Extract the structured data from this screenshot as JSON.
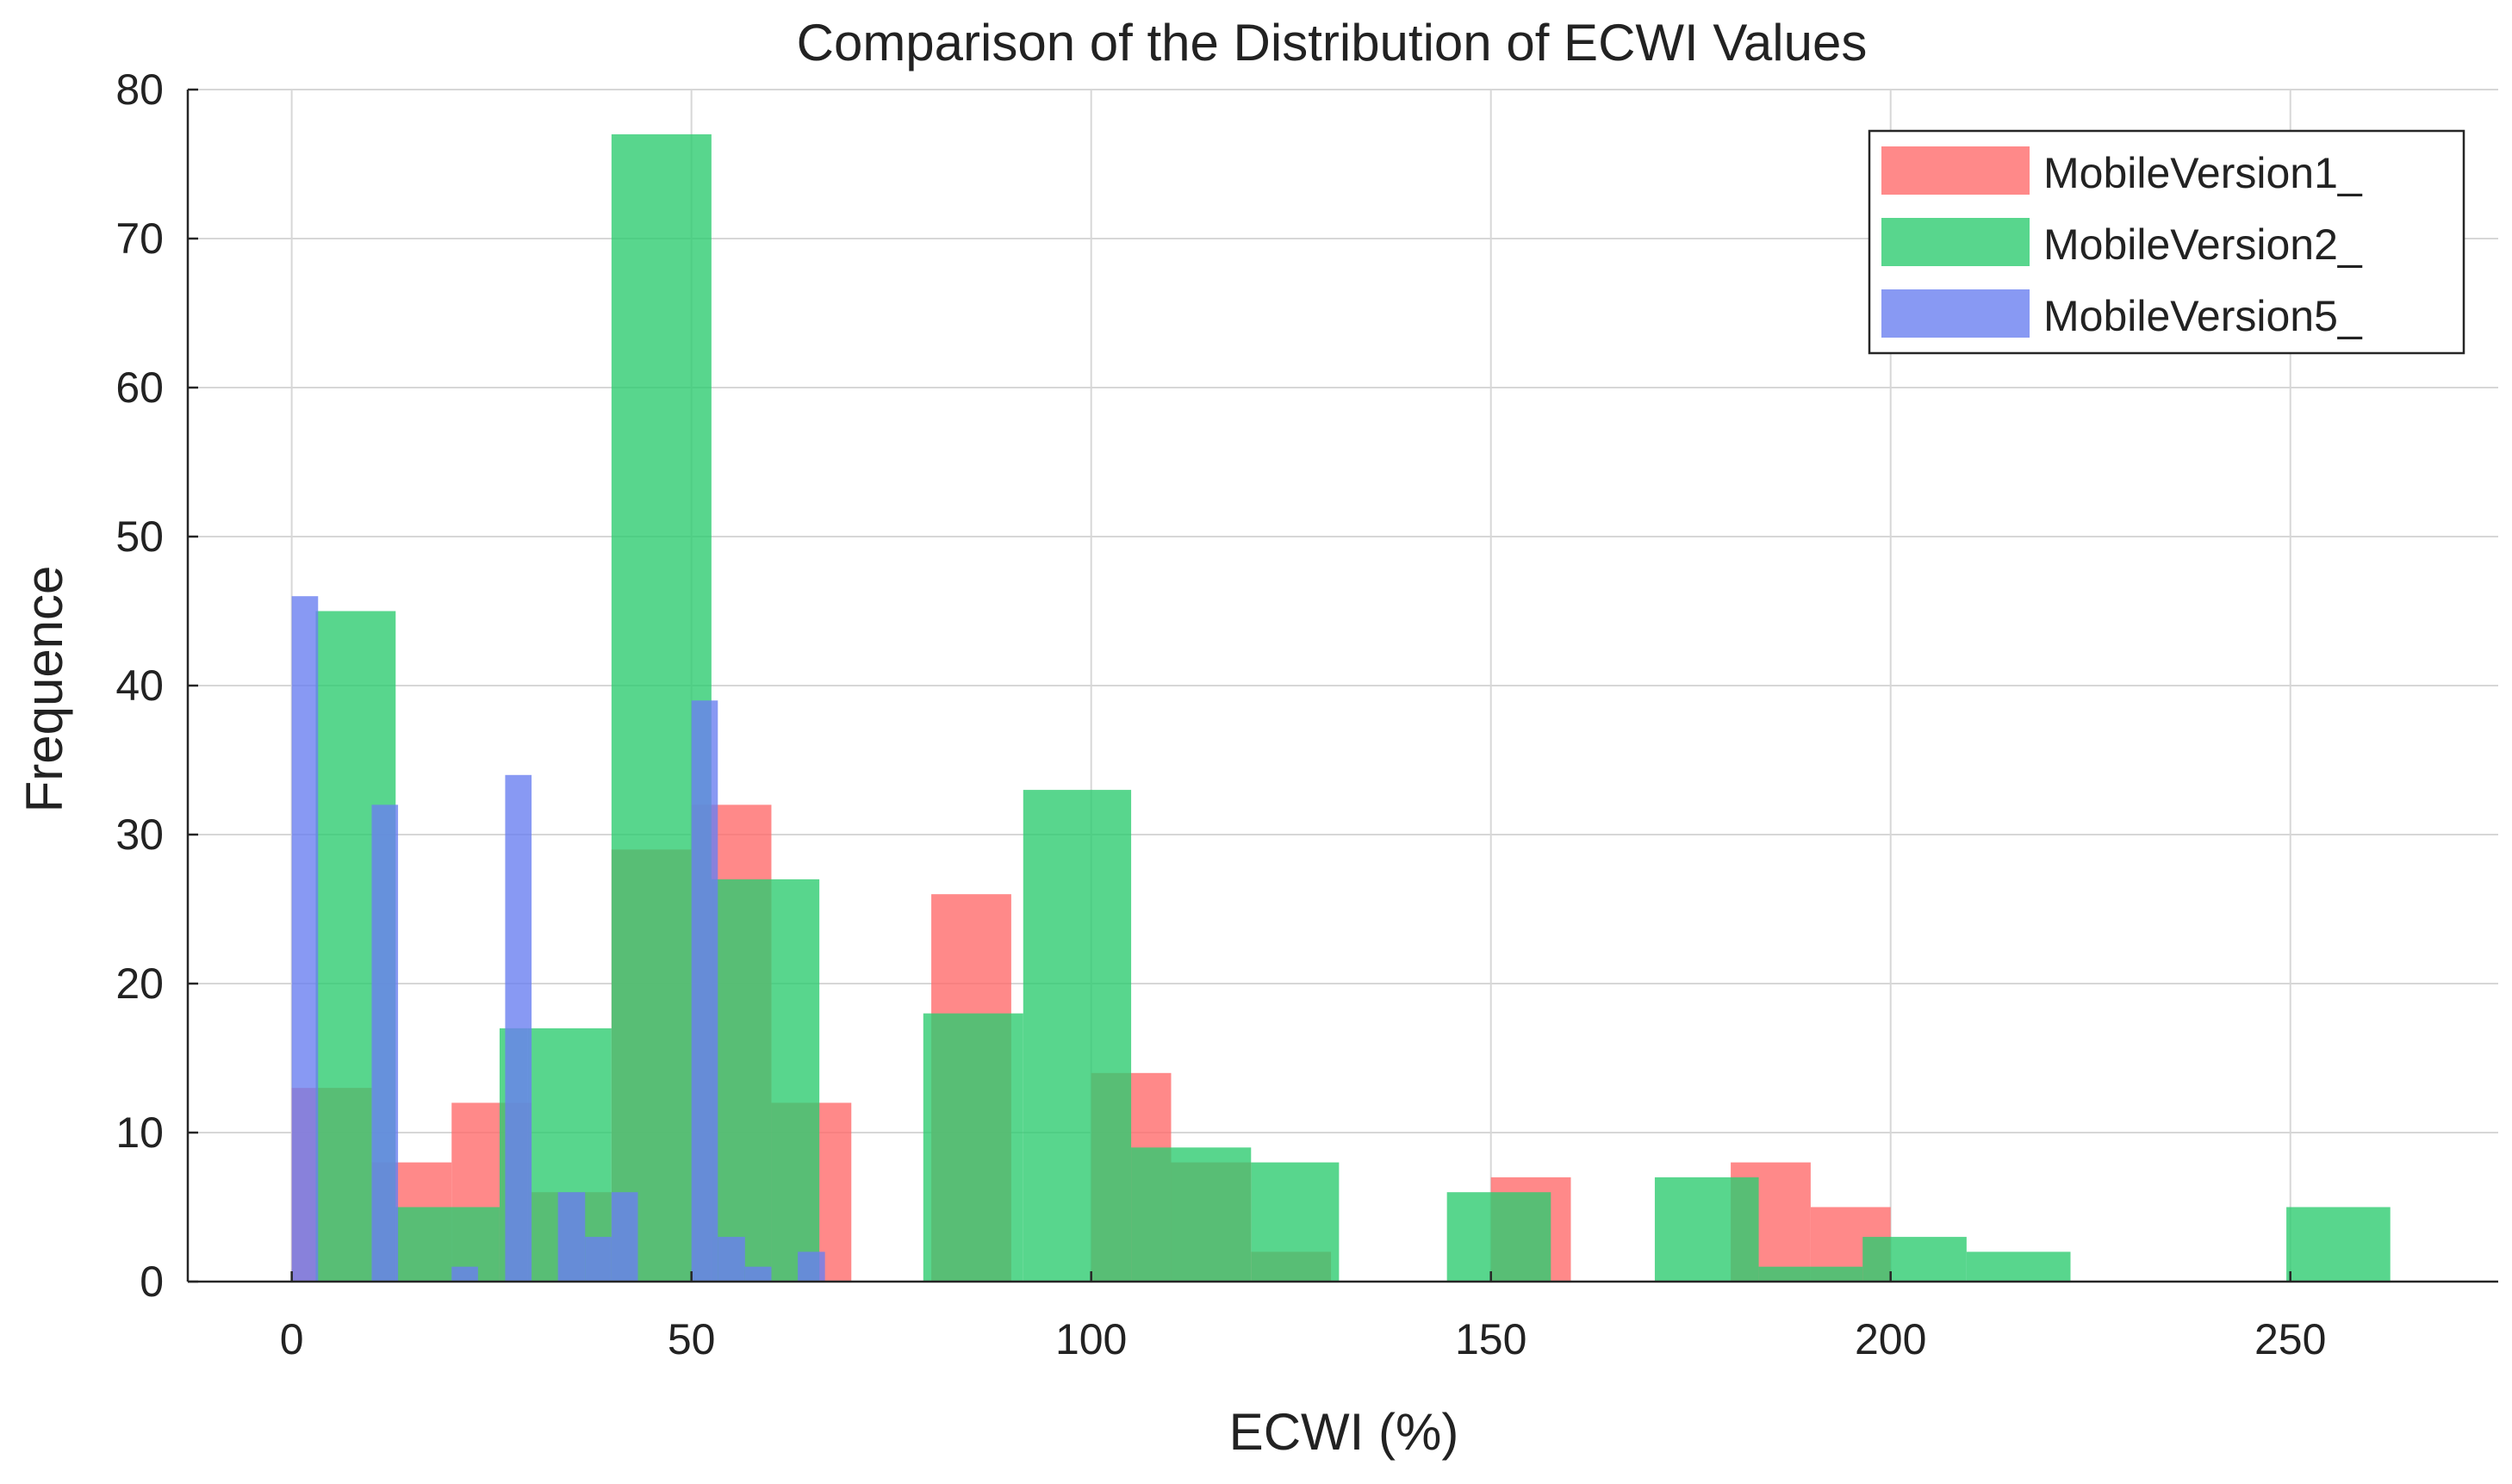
{
  "chart_data": {
    "type": "bar",
    "title": "Comparison of the Distribution of ECWI Values",
    "xlabel": "ECWI (%)",
    "ylabel": "Frequence",
    "xlim": [
      -13,
      276
    ],
    "ylim": [
      0,
      80
    ],
    "xticks": [
      0,
      50,
      100,
      150,
      200,
      250
    ],
    "yticks": [
      0,
      10,
      20,
      30,
      40,
      50,
      60,
      70,
      80
    ],
    "grid": true,
    "legend_position": "top-right",
    "series": [
      {
        "name": "MobileVersion1_",
        "color": "#ff6b6b",
        "bins": [
          {
            "x0": 0,
            "x1": 10,
            "value": 13
          },
          {
            "x0": 10,
            "x1": 20,
            "value": 8
          },
          {
            "x0": 20,
            "x1": 30,
            "value": 12
          },
          {
            "x0": 30,
            "x1": 40,
            "value": 6
          },
          {
            "x0": 40,
            "x1": 50,
            "value": 29
          },
          {
            "x0": 50,
            "x1": 60,
            "value": 32
          },
          {
            "x0": 60,
            "x1": 70,
            "value": 12
          },
          {
            "x0": 80,
            "x1": 90,
            "value": 26
          },
          {
            "x0": 100,
            "x1": 110,
            "value": 14
          },
          {
            "x0": 110,
            "x1": 120,
            "value": 8
          },
          {
            "x0": 120,
            "x1": 130,
            "value": 2
          },
          {
            "x0": 150,
            "x1": 160,
            "value": 7
          },
          {
            "x0": 180,
            "x1": 190,
            "value": 8
          },
          {
            "x0": 190,
            "x1": 200,
            "value": 5
          }
        ]
      },
      {
        "name": "MobileVersion2_",
        "color": "#2ecc71",
        "bins": [
          {
            "x0": 3,
            "x1": 13,
            "value": 45
          },
          {
            "x0": 13,
            "x1": 26,
            "value": 5
          },
          {
            "x0": 26,
            "x1": 29.5,
            "value": 17
          },
          {
            "x0": 29.5,
            "x1": 40,
            "value": 17
          },
          {
            "x0": 40,
            "x1": 52.5,
            "value": 77
          },
          {
            "x0": 52.5,
            "x1": 60,
            "value": 27
          },
          {
            "x0": 60,
            "x1": 66,
            "value": 27
          },
          {
            "x0": 79,
            "x1": 91.5,
            "value": 18
          },
          {
            "x0": 91.5,
            "x1": 105,
            "value": 33
          },
          {
            "x0": 105,
            "x1": 110,
            "value": 9
          },
          {
            "x0": 110,
            "x1": 120,
            "value": 9
          },
          {
            "x0": 120,
            "x1": 131,
            "value": 8
          },
          {
            "x0": 144.5,
            "x1": 157.5,
            "value": 6
          },
          {
            "x0": 170.5,
            "x1": 183.5,
            "value": 7
          },
          {
            "x0": 183.5,
            "x1": 196.5,
            "value": 1
          },
          {
            "x0": 196.5,
            "x1": 209.5,
            "value": 3
          },
          {
            "x0": 209.5,
            "x1": 222.5,
            "value": 2
          },
          {
            "x0": 249.5,
            "x1": 262.5,
            "value": 5
          }
        ]
      },
      {
        "name": "MobileVersion5_",
        "color": "#6a80f0",
        "bins": [
          {
            "x0": 0,
            "x1": 3.3,
            "value": 46
          },
          {
            "x0": 10,
            "x1": 13.3,
            "value": 32
          },
          {
            "x0": 20,
            "x1": 23.3,
            "value": 1
          },
          {
            "x0": 26.7,
            "x1": 30,
            "value": 34
          },
          {
            "x0": 33.3,
            "x1": 36.7,
            "value": 6
          },
          {
            "x0": 36.7,
            "x1": 40,
            "value": 3
          },
          {
            "x0": 40,
            "x1": 43.3,
            "value": 6
          },
          {
            "x0": 50,
            "x1": 53.3,
            "value": 39
          },
          {
            "x0": 53.3,
            "x1": 56.7,
            "value": 3
          },
          {
            "x0": 56.7,
            "x1": 60,
            "value": 1
          },
          {
            "x0": 63.3,
            "x1": 66.7,
            "value": 2
          }
        ]
      }
    ]
  }
}
